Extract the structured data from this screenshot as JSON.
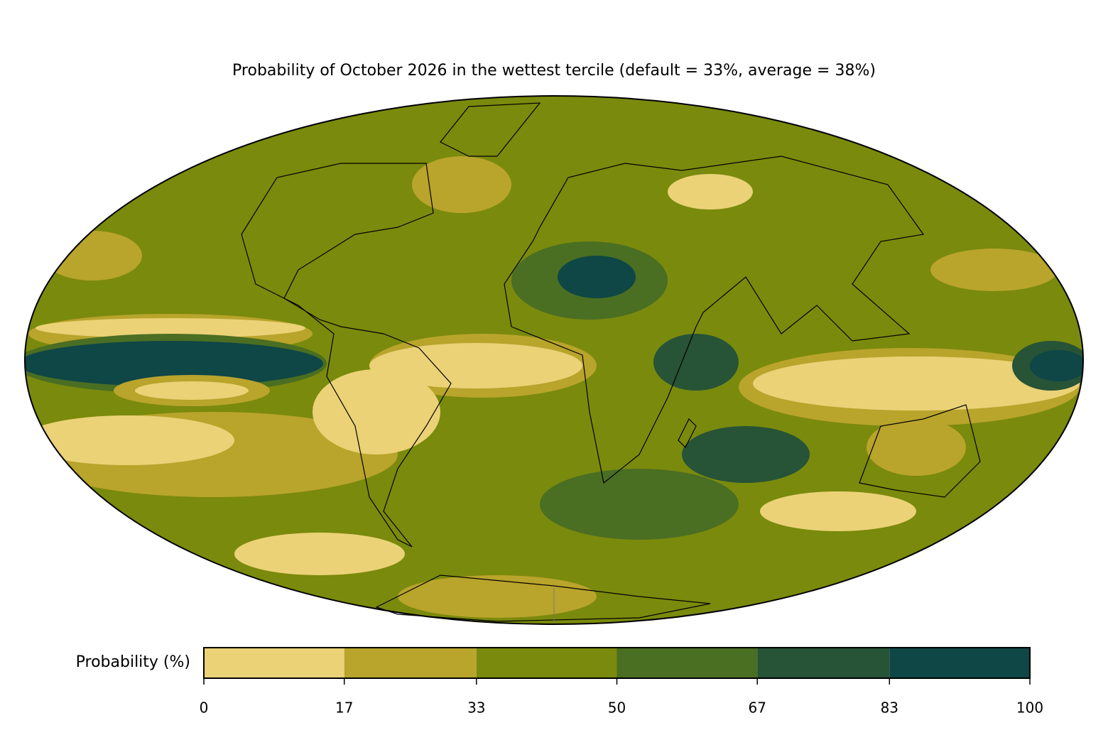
{
  "title": "Probability of October 2026 in the wettest tercile (default = 33%, average = 38%)",
  "colorbar": {
    "label": "Probability (%)",
    "ticks": [
      0,
      17,
      33,
      50,
      67,
      83,
      100
    ],
    "colors": [
      "#ebd277",
      "#b9a42c",
      "#7a8a0c",
      "#4a6e22",
      "#275337",
      "#0f4646"
    ]
  }
}
